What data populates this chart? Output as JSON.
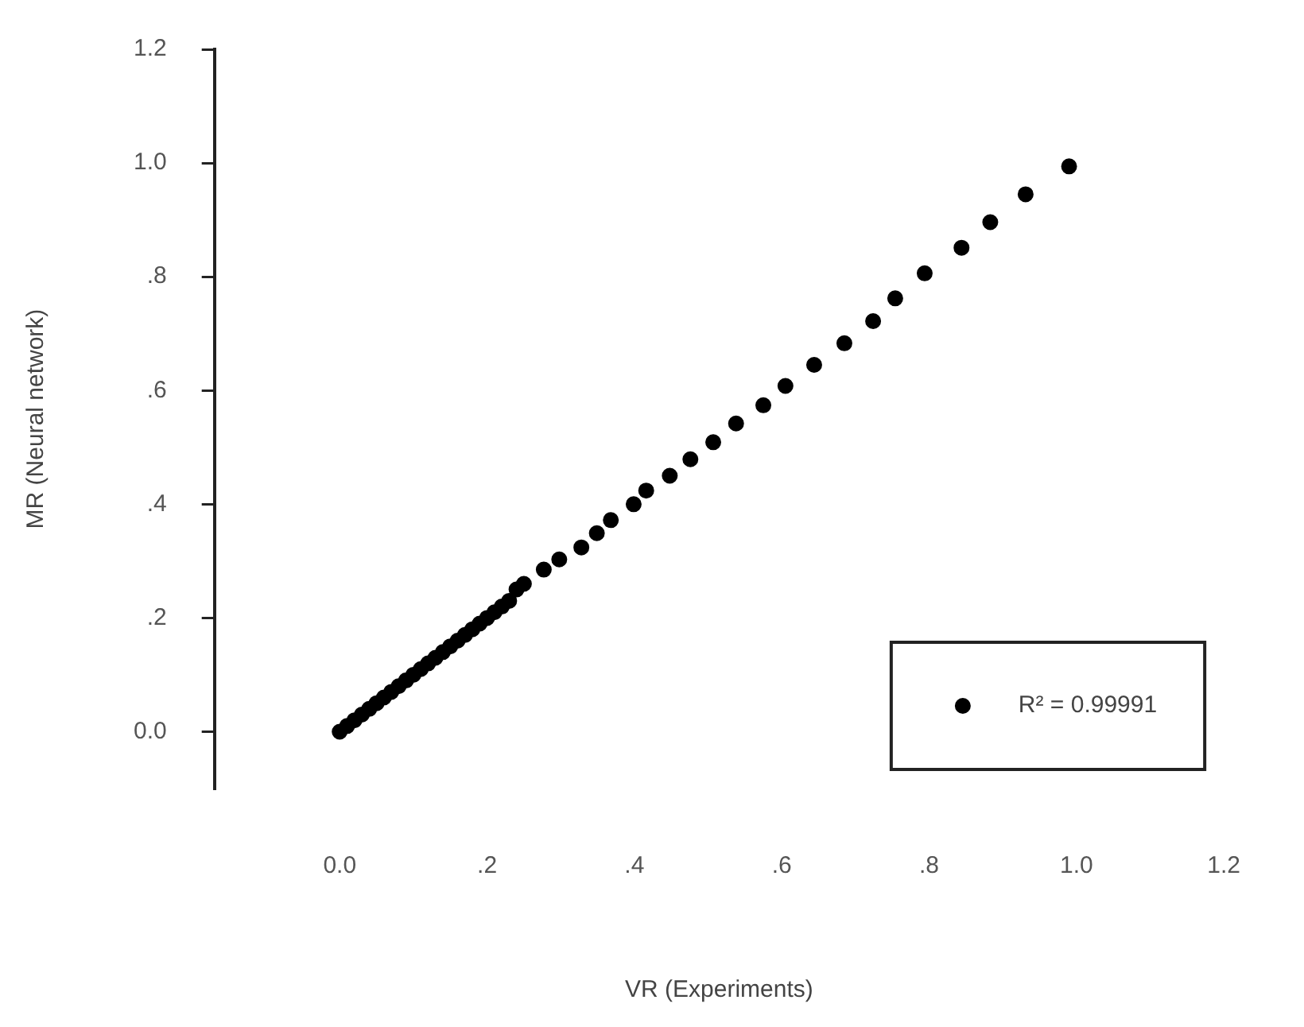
{
  "chart_data": {
    "type": "scatter",
    "xlabel": "VR (Experiments)",
    "ylabel": "MR (Neural network)",
    "xlim": [
      -0.17,
      1.2
    ],
    "ylim": [
      -0.1,
      1.2
    ],
    "xticks": [
      {
        "value": 0,
        "label": "0.0"
      },
      {
        "value": 0.2,
        "label": ".2"
      },
      {
        "value": 0.4,
        "label": ".4"
      },
      {
        "value": 0.6,
        "label": ".6"
      },
      {
        "value": 0.8,
        "label": ".8"
      },
      {
        "value": 1,
        "label": "1.0"
      },
      {
        "value": 1.2,
        "label": "1.2"
      }
    ],
    "yticks": [
      {
        "value": 0,
        "label": "0.0"
      },
      {
        "value": 0.2,
        "label": ".2"
      },
      {
        "value": 0.4,
        "label": ".4"
      },
      {
        "value": 0.6,
        "label": ".6"
      },
      {
        "value": 0.8,
        "label": ".8"
      },
      {
        "value": 1,
        "label": "1.0"
      },
      {
        "value": 1.2,
        "label": "1.2"
      }
    ],
    "legend": "bottom right",
    "marker": "circle",
    "series": [
      {
        "name": "R² = 0.99991",
        "color": "#000000",
        "x": [
          0,
          0.01,
          0.02,
          0.03,
          0.04,
          0.05,
          0.06,
          0.07,
          0.08,
          0.09,
          0.1,
          0.11,
          0.12,
          0.13,
          0.14,
          0.15,
          0.16,
          0.17,
          0.18,
          0.19,
          0.2,
          0.21,
          0.22,
          0.23,
          0.24,
          0.25,
          0.277,
          0.298,
          0.328,
          0.349,
          0.368,
          0.399,
          0.416,
          0.448,
          0.476,
          0.507,
          0.538,
          0.575,
          0.605,
          0.644,
          0.685,
          0.724,
          0.754,
          0.794,
          0.844,
          0.883,
          0.931,
          0.99
        ],
        "values": [
          0,
          0.01,
          0.02,
          0.03,
          0.04,
          0.05,
          0.06,
          0.07,
          0.08,
          0.09,
          0.1,
          0.11,
          0.12,
          0.13,
          0.14,
          0.15,
          0.16,
          0.17,
          0.18,
          0.19,
          0.2,
          0.21,
          0.22,
          0.23,
          0.25,
          0.26,
          0.285,
          0.303,
          0.324,
          0.349,
          0.372,
          0.4,
          0.424,
          0.45,
          0.479,
          0.509,
          0.542,
          0.574,
          0.608,
          0.645,
          0.683,
          0.722,
          0.762,
          0.806,
          0.851,
          0.896,
          0.945,
          0.994
        ]
      }
    ]
  }
}
